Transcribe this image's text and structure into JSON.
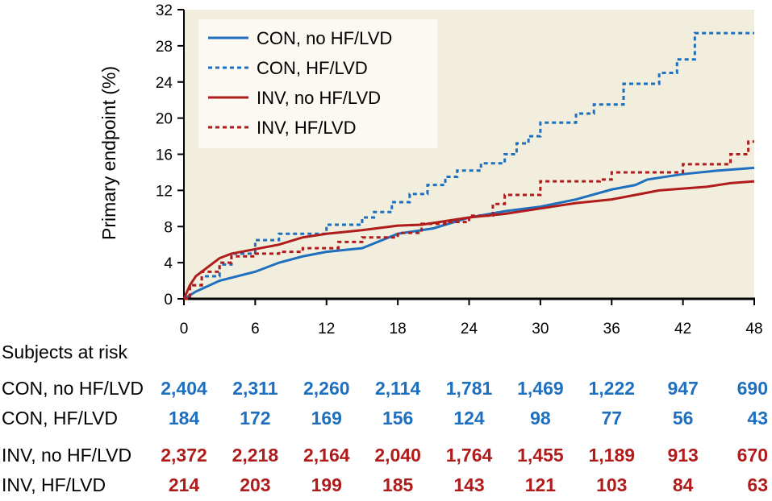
{
  "chart_data": {
    "type": "line",
    "title": "",
    "xlabel": "",
    "ylabel": "Primary endpoint (%)",
    "xlim": [
      0,
      48
    ],
    "ylim": [
      0,
      32
    ],
    "xticks": [
      0,
      6,
      12,
      18,
      24,
      30,
      36,
      42,
      48
    ],
    "yticks": [
      0,
      4,
      8,
      12,
      16,
      20,
      24,
      28,
      32
    ],
    "legend_position": "top-left",
    "series": [
      {
        "name": "CON, no HF/LVD",
        "color": "#1f6fbf",
        "style": "solid",
        "step": false,
        "points": [
          [
            0,
            0
          ],
          [
            1,
            0.8
          ],
          [
            3,
            2
          ],
          [
            6,
            3
          ],
          [
            8,
            4
          ],
          [
            10,
            4.7
          ],
          [
            12,
            5.2
          ],
          [
            15,
            5.6
          ],
          [
            18,
            7.2
          ],
          [
            21,
            7.8
          ],
          [
            24,
            9
          ],
          [
            27,
            9.7
          ],
          [
            30,
            10.2
          ],
          [
            33,
            11
          ],
          [
            36,
            12.1
          ],
          [
            38,
            12.6
          ],
          [
            39,
            13.2
          ],
          [
            42,
            13.8
          ],
          [
            45,
            14.2
          ],
          [
            48,
            14.5
          ]
        ]
      },
      {
        "name": "CON, HF/LVD",
        "color": "#1f6fbf",
        "style": "dotted",
        "step": true,
        "points": [
          [
            0,
            0
          ],
          [
            0.5,
            1.5
          ],
          [
            1.5,
            2.5
          ],
          [
            3,
            3.8
          ],
          [
            4,
            5
          ],
          [
            6,
            6.5
          ],
          [
            8,
            7.2
          ],
          [
            12,
            8.2
          ],
          [
            15,
            9
          ],
          [
            16,
            9.6
          ],
          [
            17.5,
            10.7
          ],
          [
            19,
            11.6
          ],
          [
            20.5,
            12.6
          ],
          [
            22,
            13.5
          ],
          [
            23,
            14.2
          ],
          [
            25,
            15
          ],
          [
            27,
            16
          ],
          [
            28,
            17.2
          ],
          [
            29,
            18
          ],
          [
            30,
            19.5
          ],
          [
            33,
            20.5
          ],
          [
            34.5,
            21.5
          ],
          [
            37,
            23.8
          ],
          [
            40,
            25
          ],
          [
            41.5,
            26.5
          ],
          [
            43,
            29.4
          ],
          [
            48,
            29.4
          ]
        ]
      },
      {
        "name": "INV, no HF/LVD",
        "color": "#b01c1c",
        "style": "solid",
        "step": false,
        "points": [
          [
            0,
            0
          ],
          [
            0.5,
            1.5
          ],
          [
            1,
            2.5
          ],
          [
            2,
            3.5
          ],
          [
            3,
            4.5
          ],
          [
            4,
            5
          ],
          [
            6,
            5.5
          ],
          [
            8,
            6
          ],
          [
            10,
            6.8
          ],
          [
            12,
            7.2
          ],
          [
            15,
            7.6
          ],
          [
            18,
            8.1
          ],
          [
            20,
            8.2
          ],
          [
            22,
            8.6
          ],
          [
            24,
            9
          ],
          [
            27,
            9.4
          ],
          [
            30,
            10
          ],
          [
            33,
            10.6
          ],
          [
            36,
            11
          ],
          [
            38,
            11.5
          ],
          [
            40,
            12
          ],
          [
            44,
            12.4
          ],
          [
            46,
            12.8
          ],
          [
            48,
            13
          ]
        ]
      },
      {
        "name": "INV, HF/LVD",
        "color": "#b01c1c",
        "style": "dotted",
        "step": true,
        "points": [
          [
            0,
            0
          ],
          [
            0.5,
            1.5
          ],
          [
            1.5,
            3
          ],
          [
            3,
            4
          ],
          [
            4,
            4.7
          ],
          [
            6,
            5
          ],
          [
            8,
            5.2
          ],
          [
            10,
            5.6
          ],
          [
            13,
            6.3
          ],
          [
            15,
            6.8
          ],
          [
            18,
            7.3
          ],
          [
            20,
            8.3
          ],
          [
            22,
            8.5
          ],
          [
            24,
            9.2
          ],
          [
            26,
            10.5
          ],
          [
            27,
            11.5
          ],
          [
            30,
            13
          ],
          [
            35,
            13.2
          ],
          [
            36,
            14
          ],
          [
            42,
            14.9
          ],
          [
            46,
            16
          ],
          [
            47.5,
            17.4
          ],
          [
            48,
            17.4
          ]
        ]
      }
    ]
  },
  "risk_table": {
    "title": "Subjects at risk",
    "rows": [
      {
        "label": "CON, no HF/LVD",
        "color": "#1f6fbf",
        "values": [
          "2,404",
          "2,311",
          "2,260",
          "2,114",
          "1,781",
          "1,469",
          "1,222",
          "947",
          "690"
        ]
      },
      {
        "label": "CON, HF/LVD",
        "color": "#1f6fbf",
        "values": [
          "184",
          "172",
          "169",
          "156",
          "124",
          "98",
          "77",
          "56",
          "43"
        ]
      },
      {
        "label": "INV, no HF/LVD",
        "color": "#b01c1c",
        "values": [
          "2,372",
          "2,218",
          "2,164",
          "2,040",
          "1,764",
          "1,455",
          "1,189",
          "913",
          "670"
        ]
      },
      {
        "label": "INV, HF/LVD",
        "color": "#b01c1c",
        "values": [
          "214",
          "203",
          "199",
          "185",
          "143",
          "121",
          "103",
          "84",
          "63"
        ]
      }
    ]
  }
}
